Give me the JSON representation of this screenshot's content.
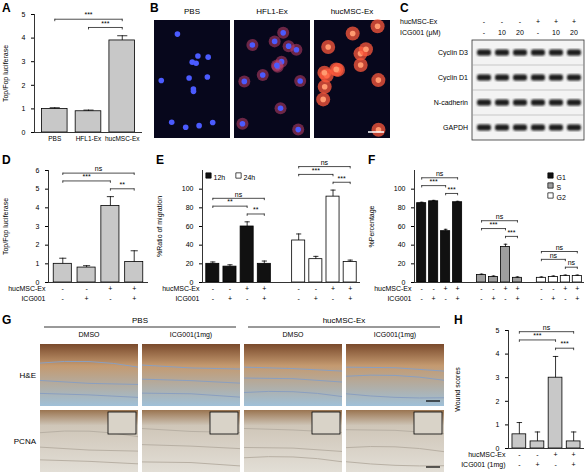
{
  "chart_data": [
    {
      "panel": "A",
      "type": "bar",
      "ylabel": "Top/Fop luciferase",
      "categories": [
        "PBS",
        "HFL1-Ex",
        "hucMSC-Ex"
      ],
      "values": [
        1.0,
        0.9,
        3.9
      ],
      "errors": [
        0.05,
        0.05,
        0.2
      ],
      "color": "#c8c8c8",
      "ylim": [
        0,
        5
      ],
      "yticks": [
        0,
        1,
        2,
        3,
        4,
        5
      ],
      "significance": [
        {
          "bars": [
            1,
            2
          ],
          "label": "***"
        },
        {
          "bars": [
            0,
            2
          ],
          "label": "***"
        }
      ]
    },
    {
      "panel": "B",
      "type": "image",
      "labels": [
        "PBS",
        "HFL1-Ex",
        "hucMSC-Ex"
      ]
    },
    {
      "panel": "C",
      "type": "blot",
      "conditions": [
        {
          "name": "hucMSC-Ex",
          "values": [
            "-",
            "-",
            "-",
            "+",
            "+",
            "+"
          ]
        },
        {
          "name": "ICG001 (μM)",
          "values": [
            "-",
            "10",
            "20",
            "-",
            "10",
            "20"
          ]
        }
      ],
      "rows": [
        "Cyclin D3",
        "Cyclin D1",
        "N-cadherin",
        "GAPDH"
      ]
    },
    {
      "panel": "D",
      "type": "bar",
      "ylabel": "Top/Fop luciferase",
      "values": [
        1.0,
        0.8,
        4.1,
        1.1
      ],
      "errors": [
        0.3,
        0.1,
        0.5,
        0.6
      ],
      "color": "#c8c8c8",
      "conditions": [
        {
          "name": "hucMSC-Ex",
          "values": [
            "-",
            "-",
            "+",
            "+"
          ]
        },
        {
          "name": "ICG001",
          "values": [
            "-",
            "+",
            "-",
            "+"
          ]
        }
      ],
      "ylim": [
        0,
        6
      ],
      "yticks": [
        0,
        1,
        2,
        3,
        4,
        5,
        6
      ],
      "significance": [
        {
          "bars": [
            2,
            3
          ],
          "label": "**"
        },
        {
          "bars": [
            0,
            2
          ],
          "label": "***"
        },
        {
          "bars": [
            0,
            3
          ],
          "label": "ns"
        }
      ]
    },
    {
      "panel": "E",
      "type": "bar",
      "ylabel": "%Ratio of migration",
      "series": [
        {
          "name": "12h",
          "color": "#111111",
          "values": [
            20,
            17,
            60,
            20
          ],
          "errors": [
            2,
            2,
            5,
            3
          ],
          "significance": [
            {
              "bars": [
                2,
                3
              ],
              "label": "**"
            },
            {
              "bars": [
                0,
                2
              ],
              "label": "**"
            },
            {
              "bars": [
                0,
                3
              ],
              "label": "ns"
            }
          ]
        },
        {
          "name": "24h",
          "color": "#ffffff",
          "values": [
            45,
            25,
            92,
            22
          ],
          "errors": [
            7,
            3,
            7,
            2
          ],
          "significance": [
            {
              "bars": [
                2,
                3
              ],
              "label": "***"
            },
            {
              "bars": [
                0,
                2
              ],
              "label": "***"
            },
            {
              "bars": [
                0,
                3
              ],
              "label": "ns"
            }
          ]
        }
      ],
      "conditions": [
        {
          "name": "hucMSC-Ex",
          "values": [
            "-",
            "-",
            "+",
            "+"
          ]
        },
        {
          "name": "ICG001",
          "values": [
            "-",
            "+",
            "-",
            "+"
          ]
        }
      ],
      "ylim": [
        0,
        120
      ],
      "yticks": [
        0,
        20,
        40,
        60,
        80,
        100
      ],
      "legend": "top-left"
    },
    {
      "panel": "F",
      "type": "bar",
      "ylabel": "%Percentage",
      "series": [
        {
          "name": "G1",
          "color": "#111111",
          "values": [
            85,
            87,
            55,
            86
          ],
          "errors": [
            1,
            1,
            2,
            1
          ],
          "significance": [
            {
              "bars": [
                2,
                3
              ],
              "label": "***"
            },
            {
              "bars": [
                0,
                2
              ],
              "label": "***"
            },
            {
              "bars": [
                0,
                3
              ],
              "label": "ns"
            }
          ]
        },
        {
          "name": "S",
          "color": "#9e9e9e",
          "values": [
            8,
            6,
            38,
            5
          ],
          "errors": [
            1,
            1,
            3,
            1
          ],
          "significance": [
            {
              "bars": [
                2,
                3
              ],
              "label": "***"
            },
            {
              "bars": [
                0,
                2
              ],
              "label": "***"
            },
            {
              "bars": [
                0,
                3
              ],
              "label": "ns"
            }
          ]
        },
        {
          "name": "G2",
          "color": "#ffffff",
          "values": [
            5,
            6,
            7,
            7
          ],
          "errors": [
            1,
            1,
            1,
            1
          ],
          "significance": [
            {
              "bars": [
                2,
                3
              ],
              "label": "ns"
            },
            {
              "bars": [
                0,
                2
              ],
              "label": "ns"
            },
            {
              "bars": [
                0,
                3
              ],
              "label": "ns"
            }
          ]
        }
      ],
      "conditions": [
        {
          "name": "hucMSC-Ex",
          "values": [
            "-",
            "-",
            "+",
            "+"
          ]
        },
        {
          "name": "ICG001",
          "values": [
            "-",
            "+",
            "-",
            "+"
          ]
        }
      ],
      "ylim": [
        0,
        120
      ],
      "yticks": [
        0,
        20,
        40,
        60,
        80,
        100
      ],
      "legend": "top-right"
    },
    {
      "panel": "G",
      "type": "image",
      "groups": [
        "PBS",
        "hucMSC-Ex"
      ],
      "columns": [
        "DMSO",
        "ICG001(1mg)",
        "DMSO",
        "ICG001(1mg)"
      ],
      "rows": [
        "H&E",
        "PCNA"
      ]
    },
    {
      "panel": "H",
      "type": "bar",
      "ylabel": "Wound scores",
      "values": [
        0.6,
        0.3,
        3.0,
        0.3
      ],
      "errors": [
        0.5,
        0.4,
        0.9,
        0.4
      ],
      "color": "#c8c8c8",
      "conditions": [
        {
          "name": "hucMSC-Ex",
          "values": [
            "-",
            "-",
            "+",
            "+"
          ]
        },
        {
          "name": "ICG001 (1mg)",
          "values": [
            "-",
            "+",
            "-",
            "+"
          ]
        }
      ],
      "ylim": [
        0,
        5
      ],
      "yticks": [
        0,
        1,
        2,
        3,
        4,
        5
      ],
      "significance": [
        {
          "bars": [
            2,
            3
          ],
          "label": "***"
        },
        {
          "bars": [
            0,
            2
          ],
          "label": "***"
        },
        {
          "bars": [
            0,
            3
          ],
          "label": "ns"
        }
      ]
    }
  ]
}
